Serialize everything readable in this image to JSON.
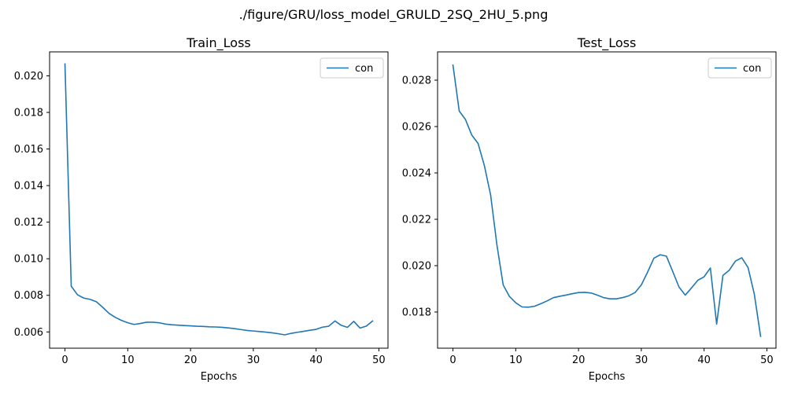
{
  "figure": {
    "suptitle": "./figure/GRU/loss_model_GRULD_2SQ_2HU_5.png"
  },
  "line_color": "#1f77b4",
  "chart_data": [
    {
      "type": "line",
      "title": "Train_Loss",
      "xlabel": "Epochs",
      "ylabel": "",
      "xlim": [
        -2.45,
        51.45
      ],
      "ylim": [
        0.00511,
        0.02131
      ],
      "xticks": [
        0,
        10,
        20,
        30,
        40,
        50
      ],
      "xtick_labels": [
        "0",
        "10",
        "20",
        "30",
        "40",
        "50"
      ],
      "yticks": [
        0.006,
        0.008,
        0.01,
        0.012,
        0.014,
        0.016,
        0.018,
        0.02
      ],
      "ytick_labels": [
        "0.006",
        "0.008",
        "0.010",
        "0.012",
        "0.014",
        "0.016",
        "0.018",
        "0.020"
      ],
      "legend": "upper-right",
      "grid": false,
      "series": [
        {
          "name": "con",
          "x": [
            0,
            1,
            2,
            3,
            4,
            5,
            6,
            7,
            8,
            9,
            10,
            11,
            12,
            13,
            14,
            15,
            16,
            17,
            18,
            19,
            20,
            21,
            22,
            23,
            24,
            25,
            26,
            27,
            28,
            29,
            30,
            31,
            32,
            33,
            34,
            35,
            36,
            37,
            38,
            39,
            40,
            41,
            42,
            43,
            44,
            45,
            46,
            47,
            48,
            49
          ],
          "y": [
            0.02065,
            0.0085,
            0.00803,
            0.00785,
            0.00778,
            0.00765,
            0.00735,
            0.00702,
            0.0068,
            0.00663,
            0.0065,
            0.00641,
            0.00646,
            0.00653,
            0.00653,
            0.0065,
            0.00643,
            0.00639,
            0.00637,
            0.00635,
            0.00633,
            0.00631,
            0.0063,
            0.00628,
            0.00627,
            0.00625,
            0.00622,
            0.00618,
            0.00613,
            0.00608,
            0.00605,
            0.00602,
            0.00599,
            0.00595,
            0.0059,
            0.00584,
            0.00592,
            0.00598,
            0.00603,
            0.00609,
            0.00614,
            0.00626,
            0.00631,
            0.0066,
            0.00636,
            0.00625,
            0.00658,
            0.00621,
            0.00632,
            0.0066
          ]
        }
      ]
    },
    {
      "type": "line",
      "title": "Test_Loss",
      "xlabel": "Epochs",
      "ylabel": "",
      "xlim": [
        -2.45,
        51.45
      ],
      "ylim": [
        0.01644,
        0.02922
      ],
      "xticks": [
        0,
        10,
        20,
        30,
        40,
        50
      ],
      "xtick_labels": [
        "0",
        "10",
        "20",
        "30",
        "40",
        "50"
      ],
      "yticks": [
        0.018,
        0.02,
        0.022,
        0.024,
        0.026,
        0.028
      ],
      "ytick_labels": [
        "0.018",
        "0.020",
        "0.022",
        "0.024",
        "0.026",
        "0.028"
      ],
      "legend": "upper-right",
      "grid": false,
      "series": [
        {
          "name": "con",
          "x": [
            0,
            1,
            2,
            3,
            4,
            5,
            6,
            7,
            8,
            9,
            10,
            11,
            12,
            13,
            14,
            15,
            16,
            17,
            18,
            19,
            20,
            21,
            22,
            23,
            24,
            25,
            26,
            27,
            28,
            29,
            30,
            31,
            32,
            33,
            34,
            35,
            36,
            37,
            38,
            39,
            40,
            41,
            42,
            43,
            44,
            45,
            46,
            47,
            48,
            49
          ],
          "y": [
            0.02865,
            0.02667,
            0.0263,
            0.02563,
            0.02527,
            0.02432,
            0.02305,
            0.0209,
            0.01917,
            0.01867,
            0.0184,
            0.01822,
            0.01821,
            0.01825,
            0.01836,
            0.01848,
            0.01862,
            0.01868,
            0.01873,
            0.01879,
            0.01884,
            0.01885,
            0.01882,
            0.01873,
            0.01862,
            0.01857,
            0.01857,
            0.01862,
            0.0187,
            0.01884,
            0.01917,
            0.01972,
            0.02032,
            0.02047,
            0.02041,
            0.01975,
            0.01908,
            0.01873,
            0.01904,
            0.01937,
            0.01952,
            0.0199,
            0.01748,
            0.01958,
            0.0198,
            0.0202,
            0.02034,
            0.01992,
            0.01877,
            0.01695
          ]
        }
      ]
    }
  ]
}
